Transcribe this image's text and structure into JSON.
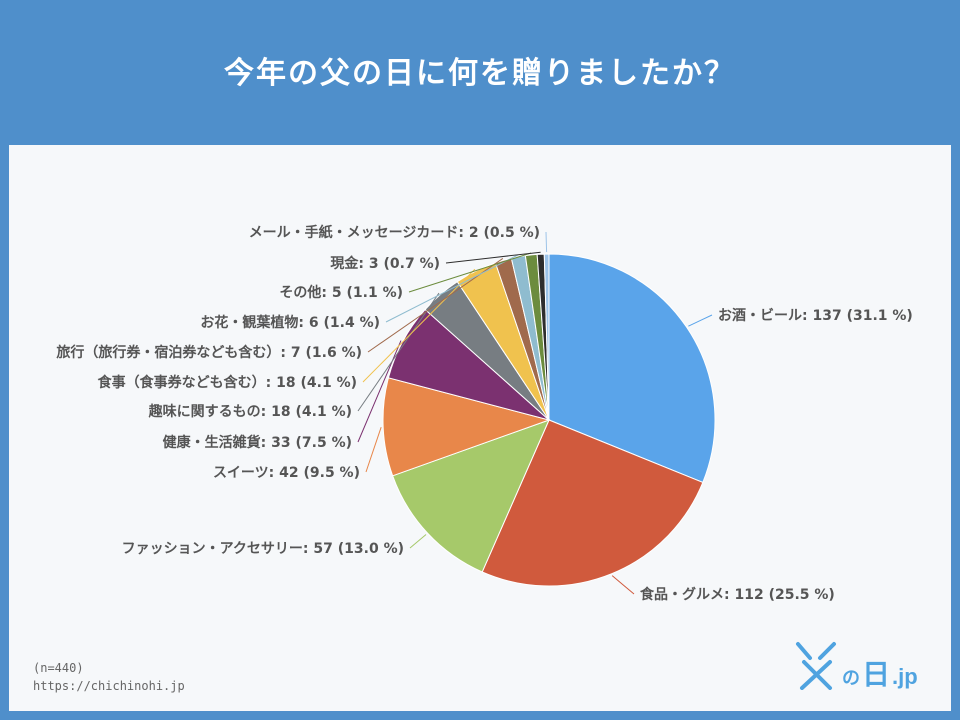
{
  "title": "今年の父の日に何を贈りましたか？",
  "footer": {
    "n": "(n=440)",
    "url": "https://chichinohi.jp"
  },
  "logo": {
    "text": "父の日.jp"
  },
  "chart_data": {
    "type": "pie",
    "title": "今年の父の日に何を贈りましたか？",
    "total": 440,
    "slices": [
      {
        "label": "お酒・ビール",
        "value": 137,
        "pct": "31.1 %",
        "color": "#5aa4ea"
      },
      {
        "label": "食品・グルメ",
        "value": 112,
        "pct": "25.5 %",
        "color": "#d05a3d"
      },
      {
        "label": "ファッション・アクセサリー",
        "value": 57,
        "pct": "13.0 %",
        "color": "#a6c96a"
      },
      {
        "label": "スイーツ",
        "value": 42,
        "pct": "9.5 %",
        "color": "#e8874a"
      },
      {
        "label": "健康・生活雑貨",
        "value": 33,
        "pct": "7.5 %",
        "color": "#7b3170"
      },
      {
        "label": "趣味に関するもの",
        "value": 18,
        "pct": "4.1 %",
        "color": "#777d82"
      },
      {
        "label": "食事（食事券なども含む）",
        "value": 18,
        "pct": "4.1 %",
        "color": "#f0c24e"
      },
      {
        "label": "旅行（旅行券・宿泊券なども含む）",
        "value": 7,
        "pct": "1.6 %",
        "color": "#a06a4c"
      },
      {
        "label": "お花・観葉植物",
        "value": 6,
        "pct": "1.4 %",
        "color": "#8fbccf"
      },
      {
        "label": "その他",
        "value": 5,
        "pct": "1.1 %",
        "color": "#6c8c3e"
      },
      {
        "label": "現金",
        "value": 3,
        "pct": "0.7 %",
        "color": "#2e2e2e"
      },
      {
        "label": "メール・手紙・メッセージカード",
        "value": 2,
        "pct": "0.5 %",
        "color": "#9cc3e8"
      }
    ]
  }
}
